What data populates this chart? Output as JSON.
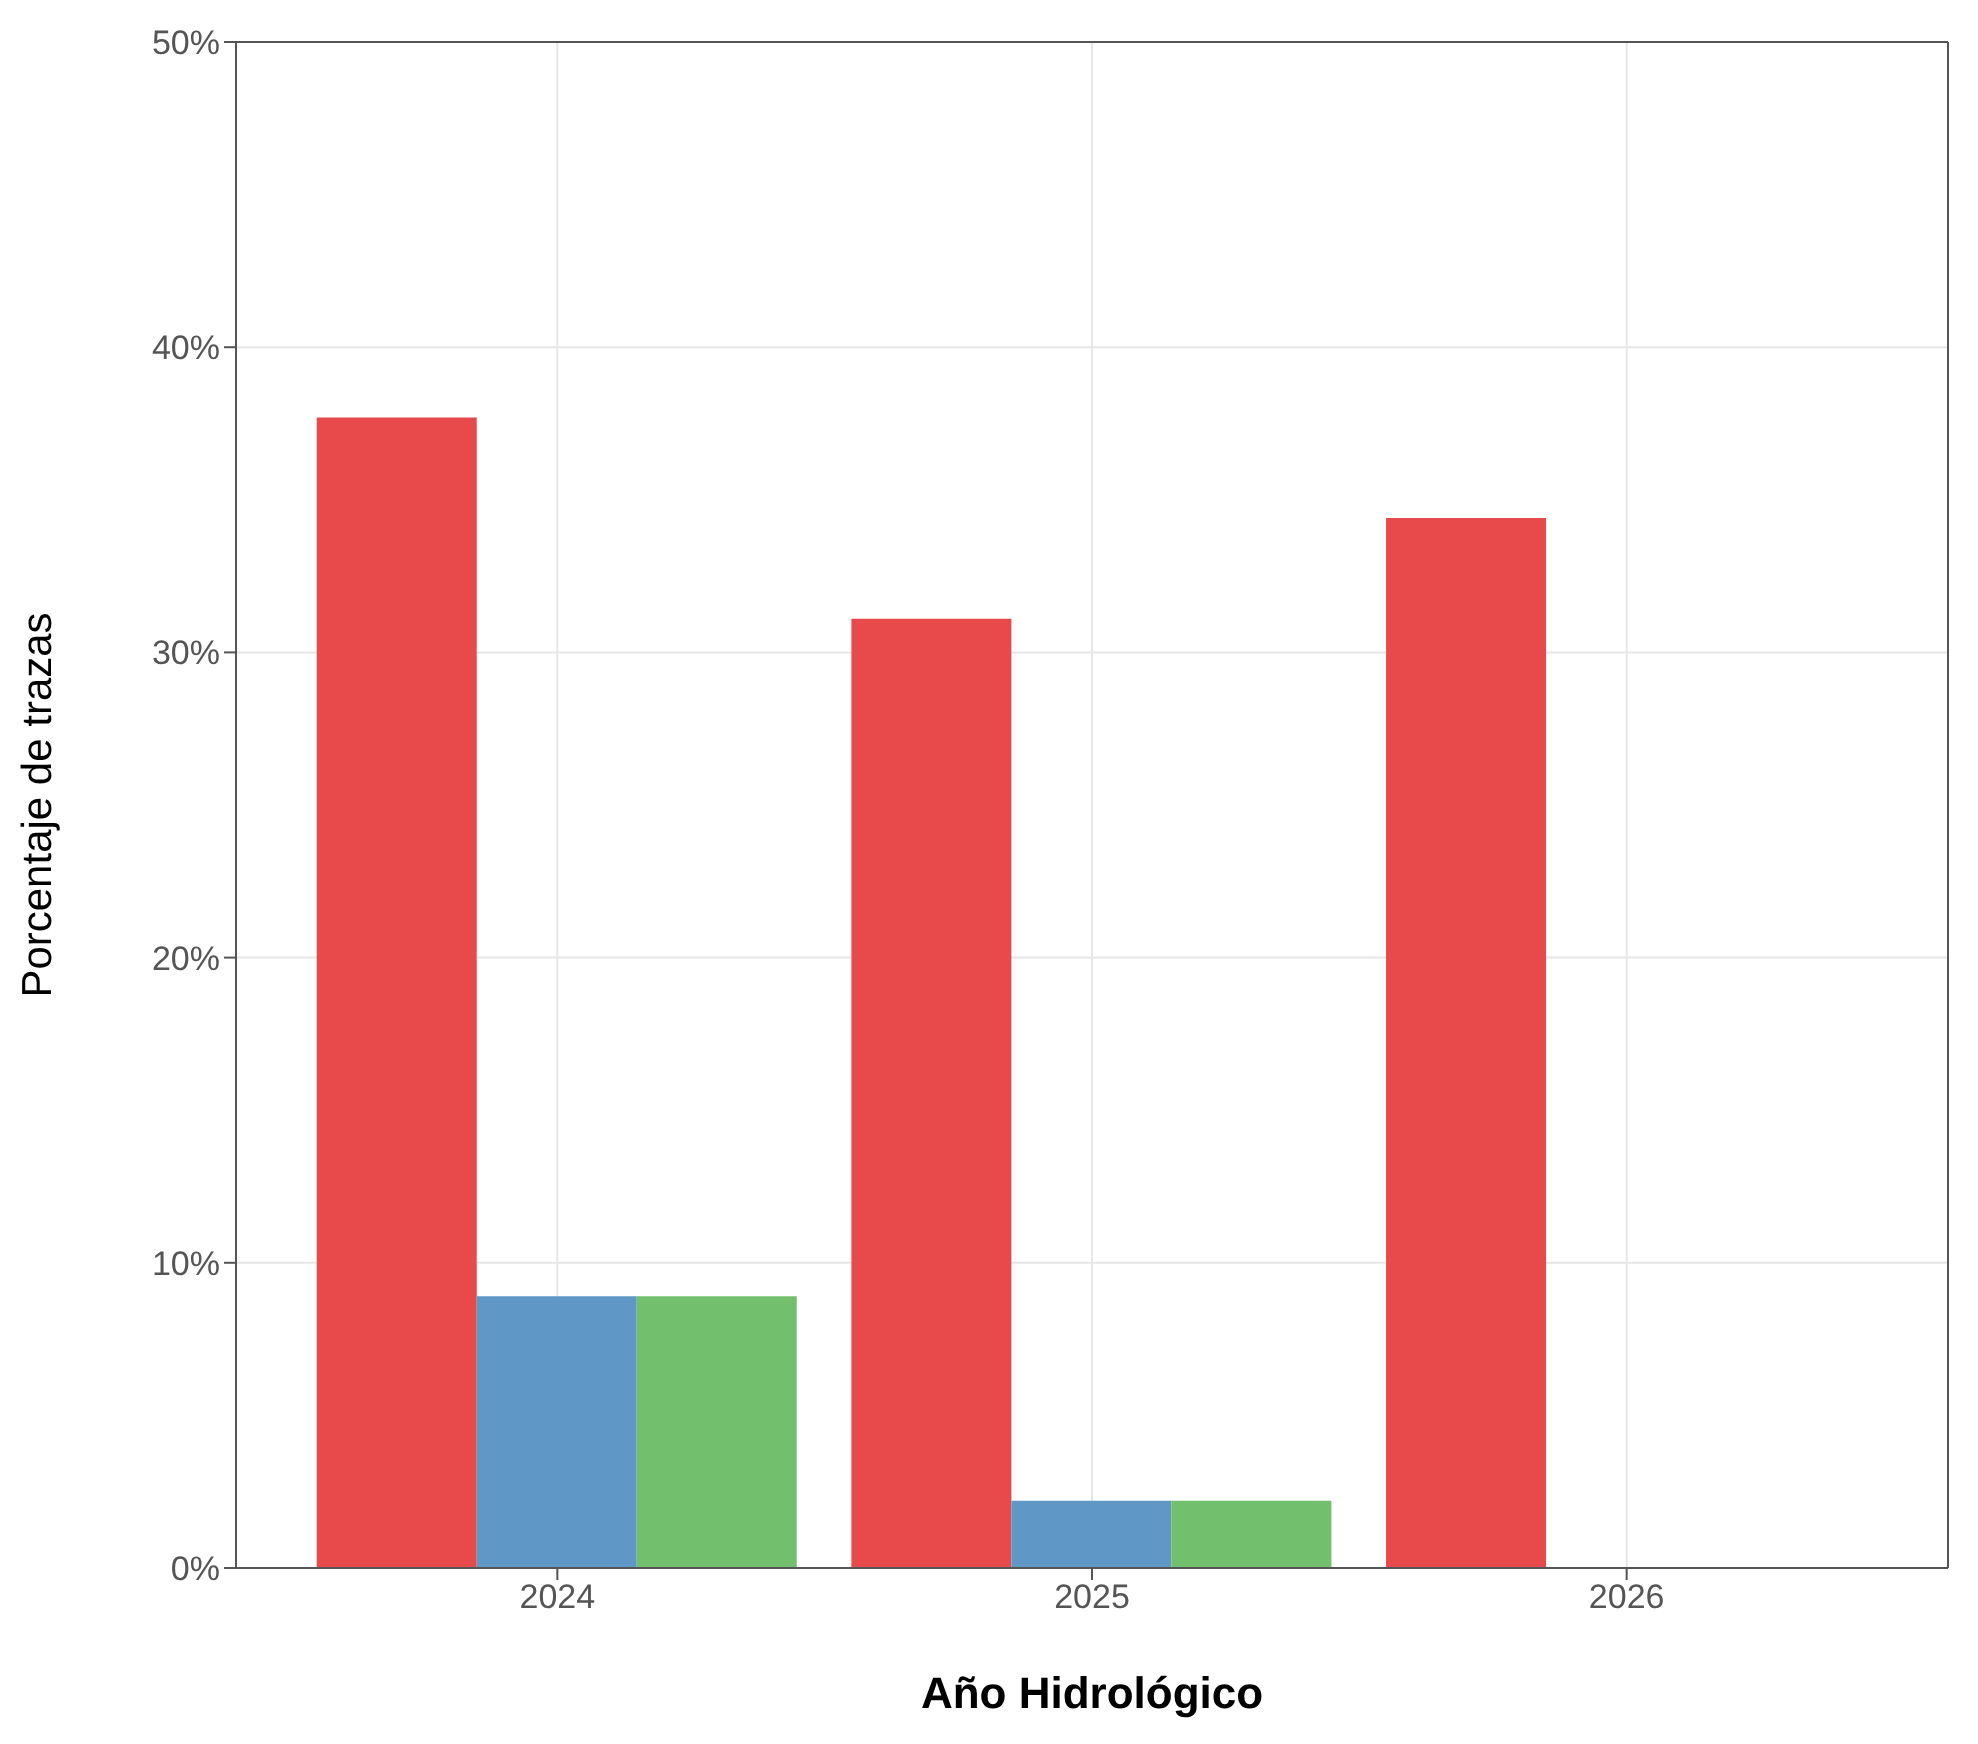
{
  "chart_data": {
    "type": "bar",
    "xlabel": "Año Hidrológico",
    "ylabel": "Porcentaje de trazas",
    "categories": [
      "2024",
      "2025",
      "2026"
    ],
    "series": [
      {
        "color": "#e8494a",
        "values": [
          37.7,
          31.1,
          34.4
        ]
      },
      {
        "color": "#5f97c6",
        "values": [
          8.9,
          2.2,
          0
        ]
      },
      {
        "color": "#72bf6e",
        "values": [
          8.9,
          2.2,
          0
        ]
      }
    ],
    "ylim": [
      0,
      50
    ],
    "yticks": [
      {
        "value": 0,
        "label": "0%"
      },
      {
        "value": 10,
        "label": "10%"
      },
      {
        "value": 20,
        "label": "20%"
      },
      {
        "value": 30,
        "label": "30%"
      },
      {
        "value": 40,
        "label": "40%"
      },
      {
        "value": 50,
        "label": "50%"
      }
    ],
    "grid": true,
    "legend": false
  }
}
